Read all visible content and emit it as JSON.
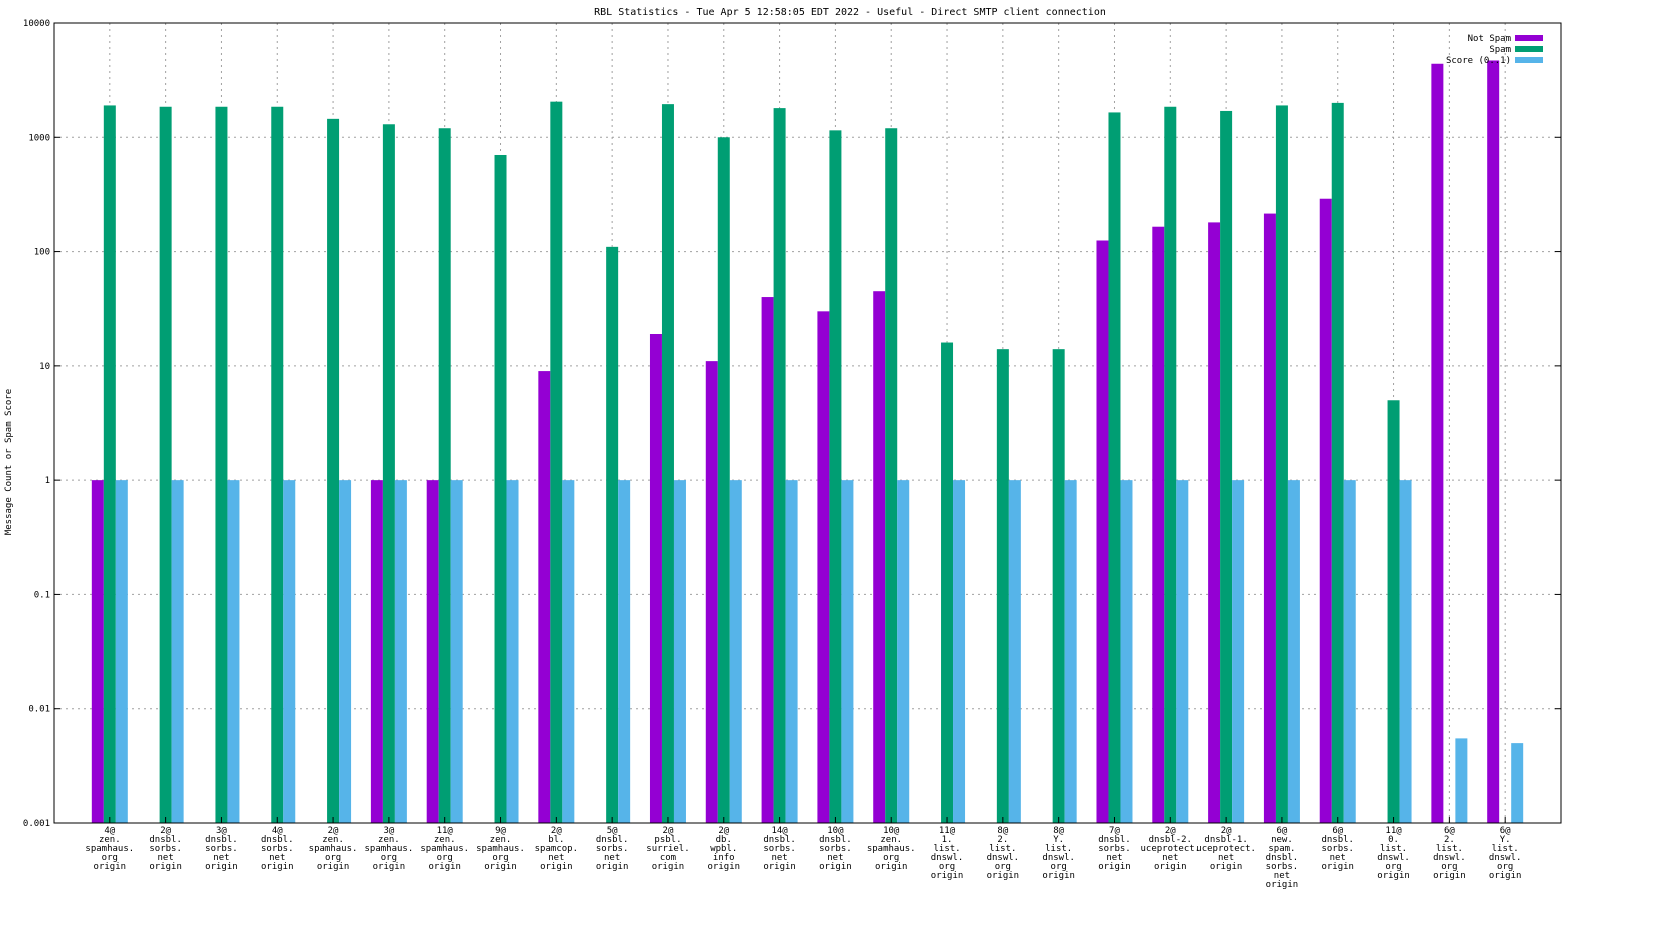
{
  "chart_data": {
    "type": "bar",
    "title": "RBL Statistics - Tue Apr  5 12:58:05 EDT 2022 - Useful - Direct SMTP client connection",
    "xlabel": "",
    "ylabel": "Message Count or Spam Score",
    "yscale": "log",
    "ylim": [
      0.001,
      10000
    ],
    "yticks": [
      "0.001",
      "0.01",
      "0.1",
      "1",
      "10",
      "100",
      "1000",
      "10000"
    ],
    "grid": true,
    "legend_position": "top-right",
    "categories": [
      [
        "4@",
        "zen.",
        "spamhaus.",
        "org",
        "origin"
      ],
      [
        "2@",
        "dnsbl.",
        "sorbs.",
        "net",
        "origin"
      ],
      [
        "3@",
        "dnsbl.",
        "sorbs.",
        "net",
        "origin"
      ],
      [
        "4@",
        "dnsbl.",
        "sorbs.",
        "net",
        "origin"
      ],
      [
        "2@",
        "zen.",
        "spamhaus.",
        "org",
        "origin"
      ],
      [
        "3@",
        "zen.",
        "spamhaus.",
        "org",
        "origin"
      ],
      [
        "11@",
        "zen.",
        "spamhaus.",
        "org",
        "origin"
      ],
      [
        "9@",
        "zen.",
        "spamhaus.",
        "org",
        "origin"
      ],
      [
        "2@",
        "bl.",
        "spamcop.",
        "net",
        "origin"
      ],
      [
        "5@",
        "dnsbl.",
        "sorbs.",
        "net",
        "origin"
      ],
      [
        "2@",
        "psbl.",
        "surriel.",
        "com",
        "origin"
      ],
      [
        "2@",
        "db.",
        "wpbl.",
        "info",
        "origin"
      ],
      [
        "14@",
        "dnsbl.",
        "sorbs.",
        "net",
        "origin"
      ],
      [
        "10@",
        "dnsbl.",
        "sorbs.",
        "net",
        "origin"
      ],
      [
        "10@",
        "zen.",
        "spamhaus.",
        "org",
        "origin"
      ],
      [
        "11@",
        "1.",
        "list.",
        "dnswl.",
        "org",
        "origin"
      ],
      [
        "8@",
        "2.",
        "list.",
        "dnswl.",
        "org",
        "origin"
      ],
      [
        "8@",
        "Y.",
        "list.",
        "dnswl.",
        "org",
        "origin"
      ],
      [
        "7@",
        "dnsbl.",
        "sorbs.",
        "net",
        "origin"
      ],
      [
        "2@",
        "dnsbl-2.",
        "uceprotect.",
        "net",
        "origin"
      ],
      [
        "2@",
        "dnsbl-1.",
        "uceprotect.",
        "net",
        "origin"
      ],
      [
        "6@",
        "new.",
        "spam.",
        "dnsbl.",
        "sorbs.",
        "net",
        "origin"
      ],
      [
        "6@",
        "dnsbl.",
        "sorbs.",
        "net",
        "origin"
      ],
      [
        "11@",
        "0.",
        "list.",
        "dnswl.",
        "org",
        "origin"
      ],
      [
        "6@",
        "2.",
        "list.",
        "dnswl.",
        "org",
        "origin"
      ],
      [
        "6@",
        "Y.",
        "list.",
        "dnswl.",
        "org",
        "origin"
      ]
    ],
    "series": [
      {
        "name": "Not Spam",
        "color": "#9400d3",
        "values": [
          1,
          null,
          null,
          null,
          null,
          1,
          1,
          null,
          9,
          null,
          19,
          11,
          40,
          30,
          45,
          null,
          null,
          null,
          125,
          165,
          180,
          215,
          290,
          null,
          4400,
          4700
        ]
      },
      {
        "name": "Spam",
        "color": "#009e73",
        "values": [
          1900,
          1850,
          1850,
          1850,
          1450,
          1300,
          1200,
          700,
          2050,
          110,
          1950,
          1000,
          1800,
          1150,
          1200,
          16,
          14,
          14,
          1650,
          1850,
          1700,
          1900,
          2000,
          5,
          null,
          null
        ]
      },
      {
        "name": "Score (0..1)",
        "color": "#56b4e9",
        "values": [
          1,
          1,
          1,
          1,
          1,
          1,
          1,
          1,
          1,
          1,
          1,
          1,
          1,
          1,
          1,
          1,
          1,
          1,
          1,
          1,
          1,
          1,
          1,
          1,
          0.0055,
          0.005
        ]
      }
    ]
  }
}
